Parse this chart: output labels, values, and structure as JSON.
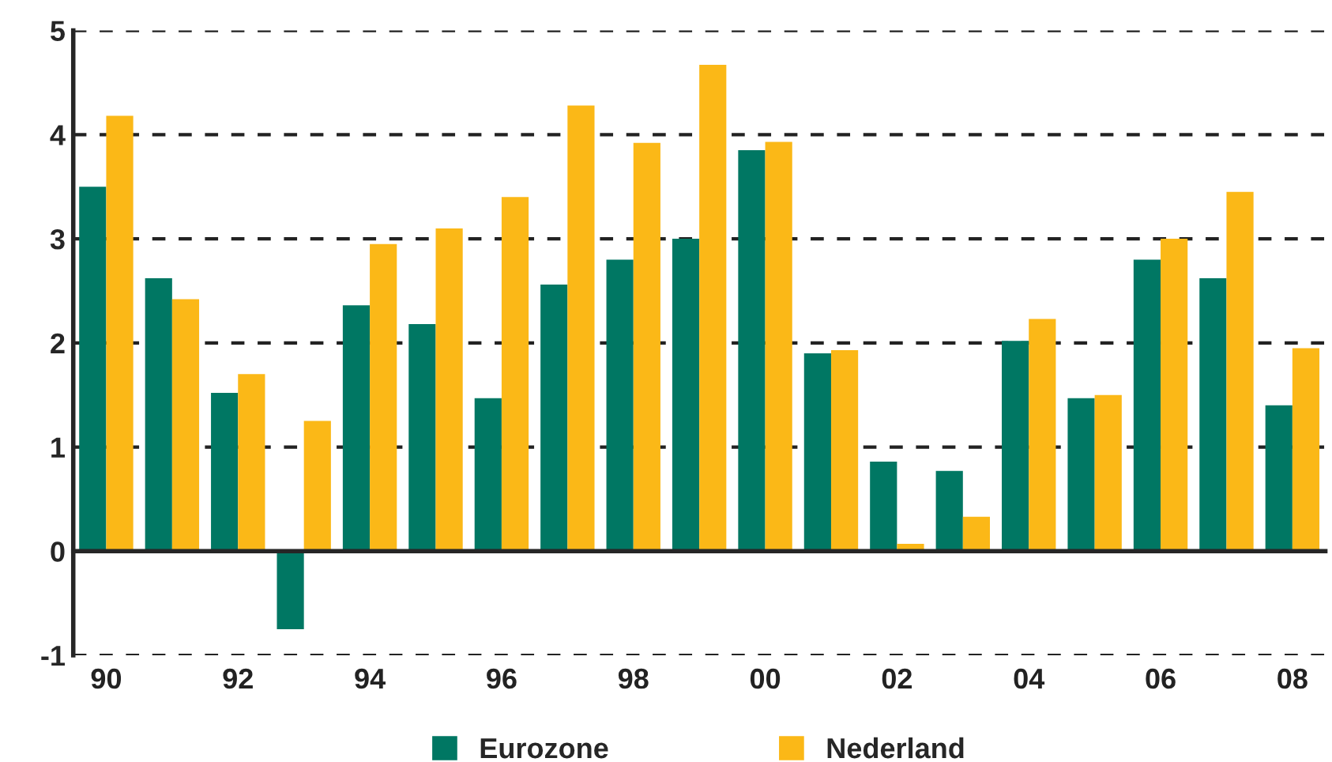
{
  "chart_data": {
    "type": "bar",
    "categories": [
      "90",
      null,
      "92",
      null,
      "94",
      null,
      "96",
      null,
      "98",
      null,
      "00",
      null,
      "02",
      null,
      "04",
      null,
      "06",
      null,
      "08"
    ],
    "series": [
      {
        "name": "Eurozone",
        "color": "#007763",
        "values": [
          3.5,
          2.62,
          1.52,
          -0.75,
          2.36,
          2.18,
          1.47,
          2.56,
          2.8,
          3.0,
          3.85,
          1.9,
          0.86,
          0.77,
          2.02,
          1.47,
          2.8,
          2.62,
          1.4
        ]
      },
      {
        "name": "Nederland",
        "color": "#fbb817",
        "values": [
          4.18,
          2.42,
          1.7,
          1.25,
          2.95,
          3.1,
          3.4,
          4.28,
          3.92,
          4.67,
          3.93,
          1.93,
          0.07,
          0.33,
          2.23,
          1.5,
          3.0,
          3.45,
          1.95
        ]
      }
    ],
    "ylim": [
      -1,
      5
    ],
    "yticks": [
      -1,
      0,
      1,
      2,
      3,
      4,
      5
    ],
    "grid": "y",
    "legend": "bottom"
  }
}
